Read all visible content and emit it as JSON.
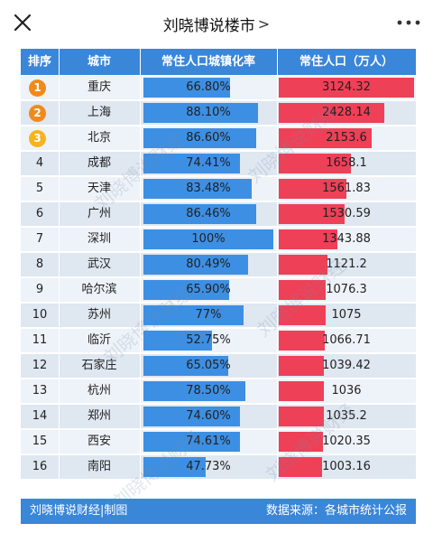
{
  "topbar": {
    "title": "刘晓博说楼市",
    "title_chevron": ">",
    "close_icon": "close-icon",
    "more_icon": "more-dots-icon"
  },
  "colors": {
    "header_blue": "#3a86d9",
    "bar_blue": "#3d8fe3",
    "bar_red": "#ee4057",
    "medal_orange": "#f08a1c",
    "medal_gold": "#f5b41e"
  },
  "chart_data": {
    "type": "table",
    "columns": [
      "排序",
      "城市",
      "常住人口城镇化率",
      "常住人口（万人）"
    ],
    "rows": [
      {
        "rank": "1",
        "city": "重庆",
        "urban_rate_label": "66.80%",
        "urban_rate": 66.8,
        "pop_label": "3124.32",
        "pop": 3124.32
      },
      {
        "rank": "2",
        "city": "上海",
        "urban_rate_label": "88.10%",
        "urban_rate": 88.1,
        "pop_label": "2428.14",
        "pop": 2428.14
      },
      {
        "rank": "3",
        "city": "北京",
        "urban_rate_label": "86.60%",
        "urban_rate": 86.6,
        "pop_label": "2153.6",
        "pop": 2153.6
      },
      {
        "rank": "4",
        "city": "成都",
        "urban_rate_label": "74.41%",
        "urban_rate": 74.41,
        "pop_label": "1658.1",
        "pop": 1658.1
      },
      {
        "rank": "5",
        "city": "天津",
        "urban_rate_label": "83.48%",
        "urban_rate": 83.48,
        "pop_label": "1561.83",
        "pop": 1561.83
      },
      {
        "rank": "6",
        "city": "广州",
        "urban_rate_label": "86.46%",
        "urban_rate": 86.46,
        "pop_label": "1530.59",
        "pop": 1530.59
      },
      {
        "rank": "7",
        "city": "深圳",
        "urban_rate_label": "100%",
        "urban_rate": 100,
        "pop_label": "1343.88",
        "pop": 1343.88
      },
      {
        "rank": "8",
        "city": "武汉",
        "urban_rate_label": "80.49%",
        "urban_rate": 80.49,
        "pop_label": "1121.2",
        "pop": 1121.2
      },
      {
        "rank": "9",
        "city": "哈尔滨",
        "urban_rate_label": "65.90%",
        "urban_rate": 65.9,
        "pop_label": "1076.3",
        "pop": 1076.3
      },
      {
        "rank": "10",
        "city": "苏州",
        "urban_rate_label": "77%",
        "urban_rate": 77,
        "pop_label": "1075",
        "pop": 1075
      },
      {
        "rank": "11",
        "city": "临沂",
        "urban_rate_label": "52.75%",
        "urban_rate": 52.75,
        "pop_label": "1066.71",
        "pop": 1066.71
      },
      {
        "rank": "12",
        "city": "石家庄",
        "urban_rate_label": "65.05%",
        "urban_rate": 65.05,
        "pop_label": "1039.42",
        "pop": 1039.42
      },
      {
        "rank": "13",
        "city": "杭州",
        "urban_rate_label": "78.50%",
        "urban_rate": 78.5,
        "pop_label": "1036",
        "pop": 1036
      },
      {
        "rank": "14",
        "city": "郑州",
        "urban_rate_label": "74.60%",
        "urban_rate": 74.6,
        "pop_label": "1035.2",
        "pop": 1035.2
      },
      {
        "rank": "15",
        "city": "西安",
        "urban_rate_label": "74.61%",
        "urban_rate": 74.61,
        "pop_label": "1020.35",
        "pop": 1020.35
      },
      {
        "rank": "16",
        "city": "南阳",
        "urban_rate_label": "47.73%",
        "urban_rate": 47.73,
        "pop_label": "1003.16",
        "pop": 1003.16
      }
    ],
    "urban_rate_max": 100,
    "pop_max": 3124.32,
    "medal_ranks": [
      "1",
      "2",
      "3"
    ]
  },
  "footer": {
    "left": "刘晓博说财经|制图",
    "right": "数据来源：各城市统计公报"
  },
  "watermark_text": "刘晓博说财经"
}
